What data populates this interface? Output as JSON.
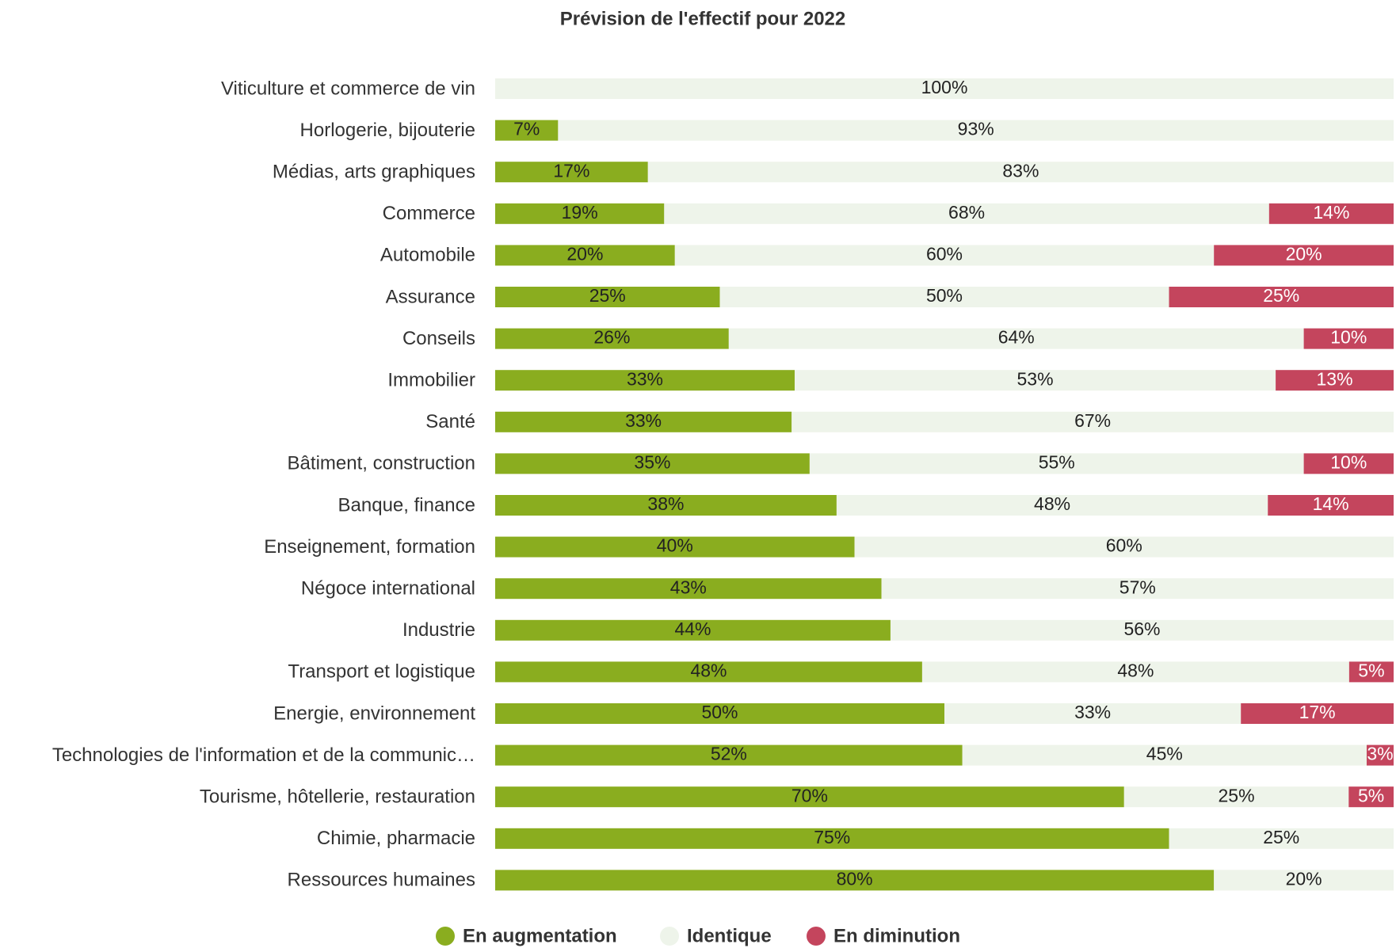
{
  "chart_data": {
    "type": "bar",
    "orientation": "horizontal",
    "stacking": "percent",
    "title": "Prévision de l'effectif pour 2022",
    "categories": [
      "Viticulture et commerce de vin",
      "Horlogerie, bijouterie",
      "Médias, arts graphiques",
      "Commerce",
      "Automobile",
      "Assurance",
      "Conseils",
      "Immobilier",
      "Santé",
      "Bâtiment, construction",
      "Banque, finance",
      "Enseignement, formation",
      "Négoce international",
      "Industrie",
      "Transport et logistique",
      "Energie, environnement",
      "Technologies de l'information et de la communic…",
      "Tourisme, hôtellerie, restauration",
      "Chimie, pharmacie",
      "Ressources humaines"
    ],
    "series": [
      {
        "name": "En augmentation",
        "color": "#8aad1f",
        "label_color": "#222222",
        "values": [
          null,
          7,
          17,
          19,
          20,
          25,
          26,
          33,
          33,
          35,
          38,
          40,
          43,
          44,
          48,
          50,
          52,
          70,
          75,
          80
        ],
        "value_labels": [
          null,
          "7%",
          "17%",
          "19%",
          "20%",
          "25%",
          "26%",
          "33%",
          "33%",
          "35%",
          "38%",
          "40%",
          "43%",
          "44%",
          "48%",
          "50%",
          "52%",
          "70%",
          "75%",
          "80%"
        ]
      },
      {
        "name": "Identique",
        "color": "#eef4ea",
        "label_color": "#222222",
        "values": [
          100,
          93,
          83,
          68,
          60,
          50,
          64,
          53,
          67,
          55,
          48,
          60,
          57,
          56,
          48,
          33,
          45,
          25,
          25,
          20
        ],
        "value_labels": [
          "100%",
          "93%",
          "83%",
          "68%",
          "60%",
          "50%",
          "64%",
          "53%",
          "67%",
          "55%",
          "48%",
          "60%",
          "57%",
          "56%",
          "48%",
          "33%",
          "45%",
          "25%",
          "25%",
          "20%"
        ]
      },
      {
        "name": "En diminution",
        "color": "#c4455d",
        "label_color": "#ffffff",
        "values": [
          null,
          null,
          null,
          14,
          20,
          25,
          10,
          13,
          null,
          10,
          14,
          null,
          null,
          null,
          5,
          17,
          3,
          5,
          null,
          null
        ],
        "value_labels": [
          null,
          null,
          null,
          "14%",
          "20%",
          "25%",
          "10%",
          "13%",
          null,
          "10%",
          "14%",
          null,
          null,
          null,
          "5%",
          "17%",
          "3%",
          "5%",
          null,
          null
        ]
      }
    ],
    "legend": "bottom"
  }
}
